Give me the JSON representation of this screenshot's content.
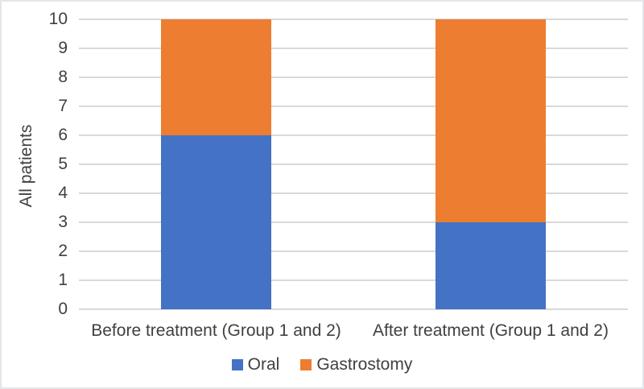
{
  "figure": {
    "background": "#ffffff",
    "border_color": "#e3e6e9"
  },
  "chart_data": {
    "type": "bar",
    "stacked": true,
    "title": "",
    "xlabel": "",
    "ylabel": "All patients",
    "categories": [
      "Before treatment (Group 1 and 2)",
      "After treatment (Group 1 and 2)"
    ],
    "series": [
      {
        "name": "Oral",
        "color": "#4472c4",
        "values": [
          6,
          3
        ]
      },
      {
        "name": "Gastrostomy",
        "color": "#ed7d31",
        "values": [
          4,
          7
        ]
      }
    ],
    "ylim": [
      0,
      10
    ],
    "yticks": [
      0,
      1,
      2,
      3,
      4,
      5,
      6,
      7,
      8,
      9,
      10
    ],
    "grid": true,
    "gridline_color": "#d9d9d9",
    "text_color": "#404040",
    "legend_position": "bottom"
  }
}
